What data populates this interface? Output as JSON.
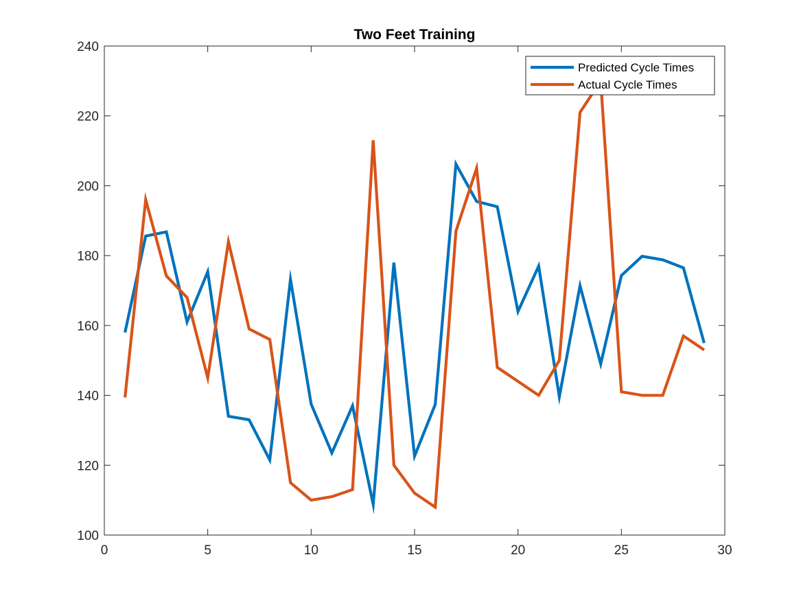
{
  "chart_data": {
    "type": "line",
    "title": "Two Feet Training",
    "xlabel": "",
    "ylabel": "",
    "xlim": [
      0,
      30
    ],
    "ylim": [
      100,
      240
    ],
    "xticks": [
      0,
      5,
      10,
      15,
      20,
      25,
      30
    ],
    "yticks": [
      100,
      120,
      140,
      160,
      180,
      200,
      220,
      240
    ],
    "grid": false,
    "legend_position": "top-right",
    "x": [
      1,
      2,
      3,
      4,
      5,
      6,
      7,
      8,
      9,
      10,
      11,
      12,
      13,
      14,
      15,
      16,
      17,
      18,
      19,
      20,
      21,
      22,
      23,
      24,
      25,
      26,
      27,
      28,
      29
    ],
    "series": [
      {
        "name": "Predicted Cycle Times",
        "color": "#0072BD",
        "values": [
          158,
          185.6,
          186.8,
          161,
          175.4,
          134,
          133,
          121.5,
          173.2,
          137.5,
          123.5,
          137,
          108.8,
          178,
          122.6,
          137.4,
          206.2,
          195.5,
          194,
          164,
          177,
          139.6,
          171.4,
          149,
          174.3,
          179.8,
          178.8,
          176.5,
          155
        ]
      },
      {
        "name": "Actual Cycle Times",
        "color": "#D95319",
        "values": [
          139.4,
          196,
          174.2,
          168,
          145,
          184,
          159,
          156,
          115,
          110,
          111,
          113,
          213,
          120,
          112,
          108,
          187,
          205,
          148,
          144,
          140,
          150,
          221,
          230,
          141,
          140,
          140,
          157,
          153
        ]
      }
    ]
  }
}
